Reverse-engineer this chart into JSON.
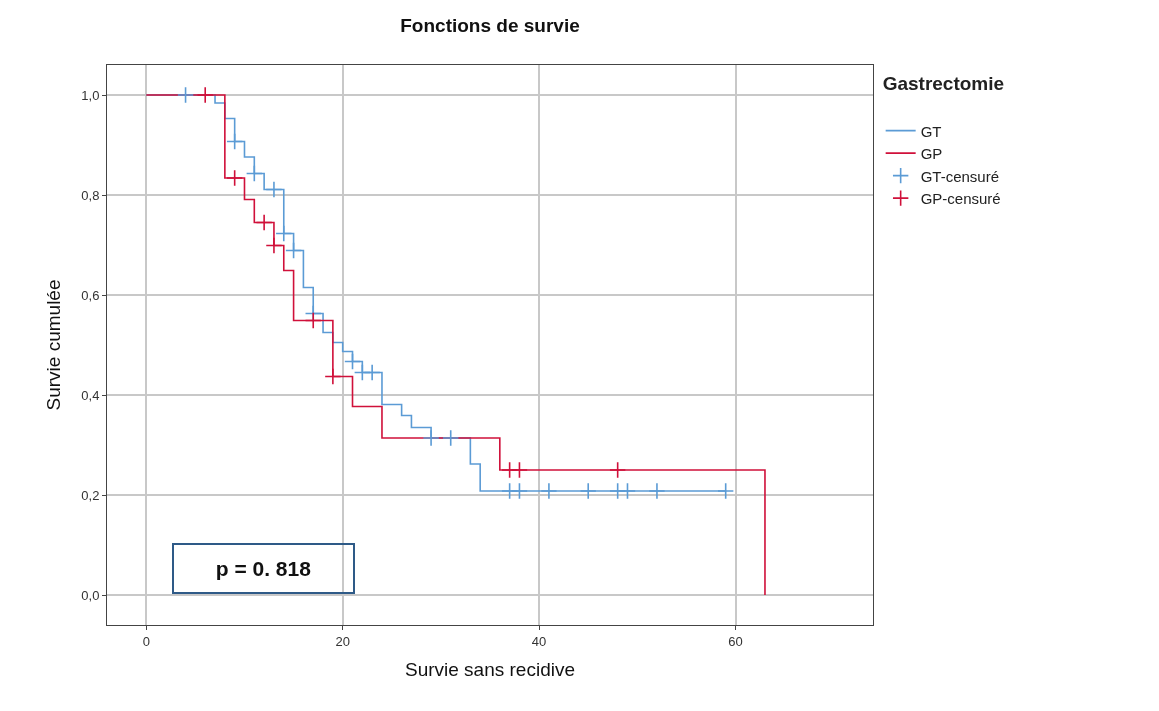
{
  "chart_data": {
    "type": "step",
    "title": "Fonctions de survie",
    "xlabel": "Survie sans recidive",
    "ylabel": "Survie cumulée",
    "legend_title": "Gastrectomie",
    "series": [
      {
        "name": "GT",
        "color": "#5b9bd5",
        "x": [
          0,
          7,
          8,
          9,
          10,
          11,
          12,
          14,
          15,
          16,
          17,
          18,
          19,
          20,
          21,
          22,
          24,
          26,
          27,
          29,
          33,
          34,
          59
        ],
        "values": [
          1.0,
          0.984,
          0.953,
          0.907,
          0.876,
          0.843,
          0.811,
          0.723,
          0.689,
          0.615,
          0.563,
          0.525,
          0.505,
          0.487,
          0.467,
          0.445,
          0.381,
          0.359,
          0.335,
          0.314,
          0.262,
          0.208,
          0.208
        ]
      },
      {
        "name": "GP",
        "color": "#d0103a",
        "x": [
          0,
          8,
          10,
          11,
          13,
          14,
          15,
          19,
          21,
          24,
          36,
          63
        ],
        "values": [
          1.0,
          0.834,
          0.791,
          0.745,
          0.699,
          0.649,
          0.549,
          0.437,
          0.377,
          0.314,
          0.25,
          0.0
        ]
      },
      {
        "name": "GT-censuré",
        "type": "scatter",
        "marker": "cross",
        "color": "#5b9bd5",
        "x": [
          4,
          9,
          11,
          13,
          14,
          15,
          17,
          21,
          22,
          23,
          29,
          31,
          37,
          38,
          41,
          45,
          48,
          49,
          52,
          59
        ],
        "values": [
          1.0,
          0.907,
          0.843,
          0.811,
          0.723,
          0.689,
          0.563,
          0.467,
          0.445,
          0.445,
          0.314,
          0.314,
          0.208,
          0.208,
          0.208,
          0.208,
          0.208,
          0.208,
          0.208,
          0.208
        ]
      },
      {
        "name": "GP-censuré",
        "type": "scatter",
        "marker": "cross",
        "color": "#d0103a",
        "x": [
          6,
          9,
          12,
          13,
          17,
          19,
          37,
          38,
          48
        ],
        "values": [
          1.0,
          0.834,
          0.745,
          0.699,
          0.549,
          0.437,
          0.25,
          0.25,
          0.25
        ]
      }
    ],
    "xlim": [
      -4,
      74
    ],
    "xticks": [
      0,
      20,
      40,
      60
    ],
    "ylim": [
      -0.06,
      1.06
    ],
    "yticks": [
      {
        "value": 0,
        "label": "0,0"
      },
      {
        "value": 0.2,
        "label": "0,2"
      },
      {
        "value": 0.4,
        "label": "0,4"
      },
      {
        "value": 0.6,
        "label": "0,6"
      },
      {
        "value": 0.8,
        "label": "0,8"
      },
      {
        "value": 1.0,
        "label": "1,0"
      }
    ],
    "grid": true,
    "legend": "top right",
    "annotations": [
      "p = 0. 818"
    ]
  }
}
